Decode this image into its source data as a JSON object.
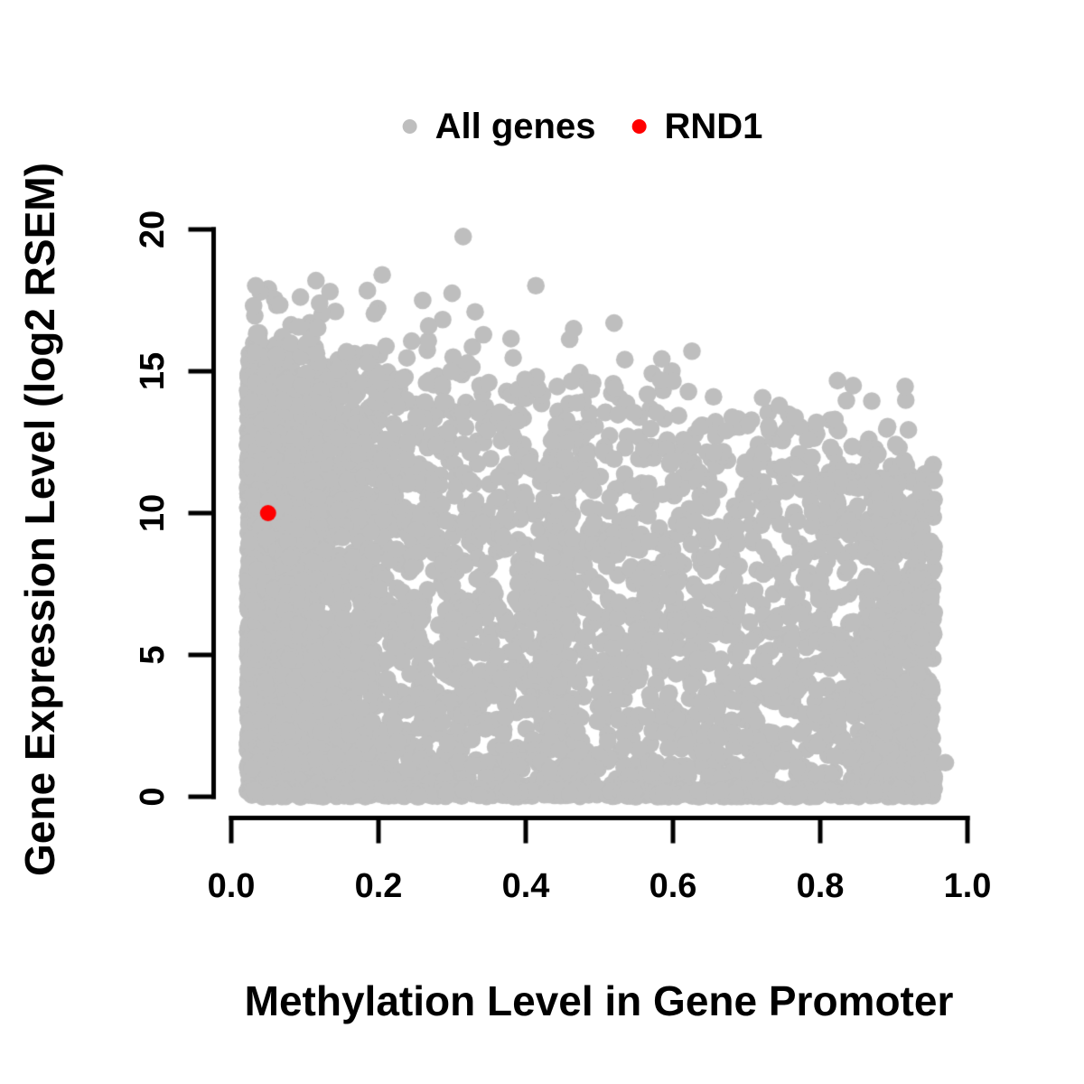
{
  "chart_data": {
    "type": "scatter",
    "title": "",
    "xlabel": "Methylation Level in Gene Promoter",
    "ylabel": "Gene Expression Level (log2 RSEM)",
    "xlim": [
      0.0,
      1.0
    ],
    "ylim": [
      0,
      20
    ],
    "grid": false,
    "legend_position": "top-center",
    "xticks": [
      "0.0",
      "0.2",
      "0.4",
      "0.6",
      "0.8",
      "1.0"
    ],
    "xtick_values": [
      0.0,
      0.2,
      0.4,
      0.6,
      0.8,
      1.0
    ],
    "yticks": [
      "0",
      "5",
      "10",
      "15",
      "20"
    ],
    "ytick_values": [
      0,
      5,
      10,
      15,
      20
    ],
    "axis_color": "#000000",
    "legend": [
      {
        "label": "All genes",
        "color": "#bebebe"
      },
      {
        "label": "RND1",
        "color": "#ff0000"
      }
    ],
    "series": [
      {
        "name": "All genes",
        "color": "#bebebe",
        "marker": "filled-circle",
        "x_range": [
          0.02,
          0.97
        ],
        "y_range": [
          0,
          19.8
        ],
        "description": "Dense cloud of ~6000 genes; very dense band at low methylation (x<0.15) spanning expression 0-15.5; upper envelope of expression declines from ~15.5 at x=0.03 to ~11.5 at x=0.95; sparse high-expression outliers up to 19.8 between x=0.1-0.6; solid strip of zero-expression genes along y=0 across full x range.",
        "generator": {
          "seed": 12345,
          "envelope": {
            "base": 15.45,
            "slope": -4.2,
            "fringe_noise": 0.7
          },
          "components": [
            {
              "type": "exp_band",
              "n": 2500,
              "x_min": 0.022,
              "x_scale": 0.05,
              "x_max": 0.42,
              "y_pow": 1.05
            },
            {
              "type": "uniform",
              "n": 1250,
              "x_min": 0.07,
              "x_max": 0.46,
              "y_pow": 1.15
            },
            {
              "type": "uniform",
              "n": 1500,
              "x_min": 0.42,
              "x_max": 0.955,
              "y_pow": 1.3
            },
            {
              "type": "uniform",
              "n": 330,
              "x_min": 0.86,
              "x_max": 0.955,
              "y_max": 11.6,
              "y_pow": 1.15
            },
            {
              "type": "bottom",
              "n": 420,
              "x_min": 0.025,
              "x_max": 0.945,
              "y_max": 0.3
            },
            {
              "type": "outliers",
              "n": 190,
              "x_min": 0.03,
              "x_max": 0.92,
              "x_pow": 1.5,
              "tail": 0.85,
              "y_clip": 18.3
            }
          ],
          "fixed_points": [
            [
              0.315,
              19.75
            ],
            [
              0.205,
              18.4
            ],
            [
              0.3,
              17.75
            ],
            [
              0.26,
              17.5
            ],
            [
              0.12,
              17.4
            ],
            [
              0.52,
              16.7
            ],
            [
              0.465,
              16.5
            ],
            [
              0.38,
              16.15
            ],
            [
              0.035,
              16.3
            ],
            [
              0.6,
              14.65
            ],
            [
              0.655,
              14.1
            ],
            [
              0.87,
              13.95
            ],
            [
              0.73,
              13.05
            ],
            [
              0.795,
              13.2
            ],
            [
              0.82,
              13.3
            ],
            [
              0.97,
              1.2
            ],
            [
              0.955,
              6.5
            ],
            [
              0.95,
              9.0
            ]
          ]
        }
      },
      {
        "name": "RND1",
        "color": "#ff0000",
        "marker": "filled-circle",
        "points": [
          [
            0.05,
            10.0
          ]
        ]
      }
    ]
  }
}
